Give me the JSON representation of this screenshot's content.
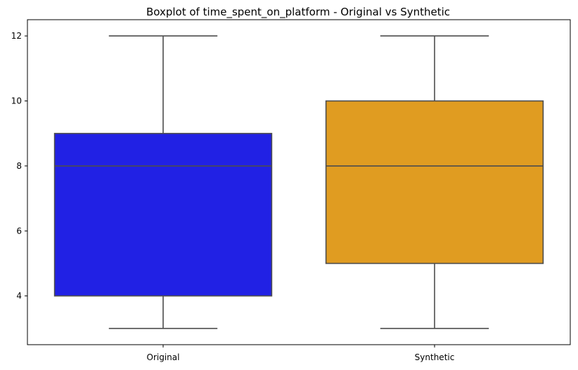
{
  "chart_data": {
    "type": "boxplot",
    "title": "Boxplot of time_spent_on_platform - Original vs Synthetic",
    "xlabel": "",
    "ylabel": "",
    "categories": [
      "Original",
      "Synthetic"
    ],
    "boxes": [
      {
        "category": "Original",
        "min": 3,
        "q1": 4,
        "median": 8,
        "q3": 9,
        "max": 12,
        "color": "#2121e4"
      },
      {
        "category": "Synthetic",
        "min": 3,
        "q1": 5,
        "median": 8,
        "q3": 10,
        "max": 12,
        "color": "#e09c21"
      }
    ],
    "ylim": [
      2.5,
      12.5
    ],
    "yticks": [
      4,
      6,
      8,
      10,
      12
    ],
    "grid": false,
    "legend": "none"
  },
  "colors": {
    "edge": "#4d4d4d",
    "axis": "#000000"
  }
}
